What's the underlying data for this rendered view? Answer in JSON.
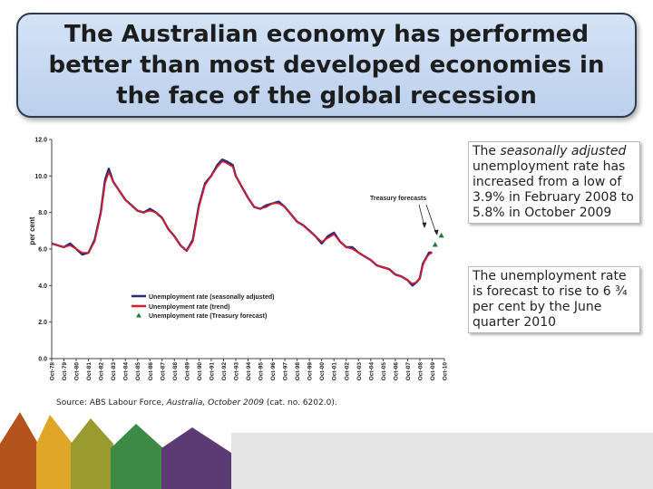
{
  "slide": {
    "title": "The Australian economy has performed better than most developed economies in the face of the global recession"
  },
  "notes": {
    "note1_parts": [
      "The ",
      "seasonally adjusted",
      " unemployment rate has increased from a low of 3.9% in February 2008 to 5.8% in October 2009"
    ],
    "note2": "The unemployment rate is forecast to rise to 6 ¾ per cent by the June quarter 2010"
  },
  "source": {
    "prefix": "Source: ABS Labour Force, ",
    "italic": "Australia, October 2009",
    "suffix": " (cat. no. 6202.0)."
  },
  "colors": {
    "seasonally_adjusted": "#2b2b7a",
    "trend": "#e01b2a",
    "forecast": "#1f7a3c",
    "deco": [
      "#b5531f",
      "#e0a628",
      "#9a9b2e",
      "#3d8a46",
      "#5c3a73"
    ]
  },
  "chart_data": {
    "type": "line",
    "ylabel": "per cent",
    "ylim": [
      0,
      12
    ],
    "yticks": [
      "0.0",
      "2.0",
      "4.0",
      "6.0",
      "8.0",
      "10.0",
      "12.0"
    ],
    "xlim": [
      1978.75,
      2010.75
    ],
    "x_tick_labels": [
      "Oct-78",
      "Oct-79",
      "Oct-80",
      "Oct-81",
      "Oct-82",
      "Oct-83",
      "Oct-84",
      "Oct-85",
      "Oct-86",
      "Oct-87",
      "Oct-88",
      "Oct-89",
      "Oct-90",
      "Oct-91",
      "Oct-92",
      "Oct-93",
      "Oct-94",
      "Oct-95",
      "Oct-96",
      "Oct-97",
      "Oct-98",
      "Oct-99",
      "Oct-00",
      "Oct-01",
      "Oct-02",
      "Oct-03",
      "Oct-04",
      "Oct-05",
      "Oct-06",
      "Oct-07",
      "Oct-08",
      "Oct-09",
      "Oct-10"
    ],
    "annotation": "Treasury forecasts",
    "legend_position": "bottom-left",
    "series": [
      {
        "name": "Unemployment rate (seasonally adjusted)",
        "style": "line",
        "x": [
          1978.75,
          1979.25,
          1979.75,
          1980.25,
          1980.75,
          1981.25,
          1981.75,
          1982.25,
          1982.75,
          1983.1,
          1983.4,
          1983.75,
          1984.25,
          1984.75,
          1985.25,
          1985.75,
          1986.25,
          1986.75,
          1987.25,
          1987.75,
          1988.25,
          1988.75,
          1989.25,
          1989.75,
          1990.25,
          1990.75,
          1991.25,
          1991.75,
          1992.25,
          1992.65,
          1993.0,
          1993.5,
          1993.75,
          1994.25,
          1994.75,
          1995.25,
          1995.75,
          1996.25,
          1996.75,
          1997.25,
          1997.75,
          1998.25,
          1998.75,
          1999.25,
          1999.75,
          2000.25,
          2000.75,
          2001.25,
          2001.75,
          2002.25,
          2002.75,
          2003.25,
          2003.75,
          2004.25,
          2004.75,
          2005.25,
          2005.75,
          2006.25,
          2006.75,
          2007.25,
          2007.75,
          2008.15,
          2008.5,
          2008.75,
          2009.0,
          2009.25,
          2009.5,
          2009.75
        ],
        "values": [
          6.3,
          6.2,
          6.1,
          6.3,
          6.0,
          5.7,
          5.8,
          6.5,
          8.0,
          9.8,
          10.4,
          9.7,
          9.2,
          8.7,
          8.4,
          8.1,
          8.0,
          8.2,
          8.0,
          7.7,
          7.1,
          6.7,
          6.2,
          5.9,
          6.5,
          8.4,
          9.6,
          10.0,
          10.6,
          10.9,
          10.8,
          10.6,
          10.0,
          9.4,
          8.8,
          8.3,
          8.2,
          8.4,
          8.5,
          8.6,
          8.3,
          7.9,
          7.5,
          7.3,
          7.0,
          6.7,
          6.3,
          6.7,
          6.9,
          6.4,
          6.1,
          6.1,
          5.8,
          5.6,
          5.4,
          5.1,
          5.0,
          4.9,
          4.6,
          4.5,
          4.3,
          4.0,
          4.2,
          4.4,
          5.2,
          5.5,
          5.8,
          5.8
        ]
      },
      {
        "name": "Unemployment rate (trend)",
        "style": "line",
        "x": [
          1978.75,
          1979.25,
          1979.75,
          1980.25,
          1980.75,
          1981.25,
          1981.75,
          1982.25,
          1982.75,
          1983.1,
          1983.4,
          1983.75,
          1984.25,
          1984.75,
          1985.25,
          1985.75,
          1986.25,
          1986.75,
          1987.25,
          1987.75,
          1988.25,
          1988.75,
          1989.25,
          1989.75,
          1990.25,
          1990.75,
          1991.25,
          1991.75,
          1992.25,
          1992.65,
          1993.0,
          1993.5,
          1993.75,
          1994.25,
          1994.75,
          1995.25,
          1995.75,
          1996.25,
          1996.75,
          1997.25,
          1997.75,
          1998.25,
          1998.75,
          1999.25,
          1999.75,
          2000.25,
          2000.75,
          2001.25,
          2001.75,
          2002.25,
          2002.75,
          2003.25,
          2003.75,
          2004.25,
          2004.75,
          2005.25,
          2005.75,
          2006.25,
          2006.75,
          2007.25,
          2007.75,
          2008.15,
          2008.5,
          2008.75,
          2009.0,
          2009.25,
          2009.5,
          2009.75
        ],
        "values": [
          6.3,
          6.2,
          6.1,
          6.2,
          6.0,
          5.8,
          5.8,
          6.4,
          7.9,
          9.6,
          10.2,
          9.7,
          9.2,
          8.7,
          8.4,
          8.1,
          8.0,
          8.1,
          8.0,
          7.7,
          7.1,
          6.7,
          6.2,
          5.9,
          6.4,
          8.3,
          9.5,
          10.0,
          10.5,
          10.8,
          10.7,
          10.5,
          10.0,
          9.4,
          8.8,
          8.3,
          8.2,
          8.3,
          8.5,
          8.5,
          8.3,
          7.9,
          7.5,
          7.3,
          7.0,
          6.7,
          6.4,
          6.6,
          6.8,
          6.4,
          6.1,
          6.0,
          5.8,
          5.6,
          5.4,
          5.1,
          5.0,
          4.9,
          4.6,
          4.5,
          4.3,
          4.1,
          4.2,
          4.4,
          5.1,
          5.5,
          5.7,
          5.8
        ]
      },
      {
        "name": "Unemployment rate (Treasury forecast)",
        "style": "marker",
        "x": [
          2010.0,
          2010.5
        ],
        "values": [
          6.25,
          6.75
        ]
      }
    ]
  }
}
